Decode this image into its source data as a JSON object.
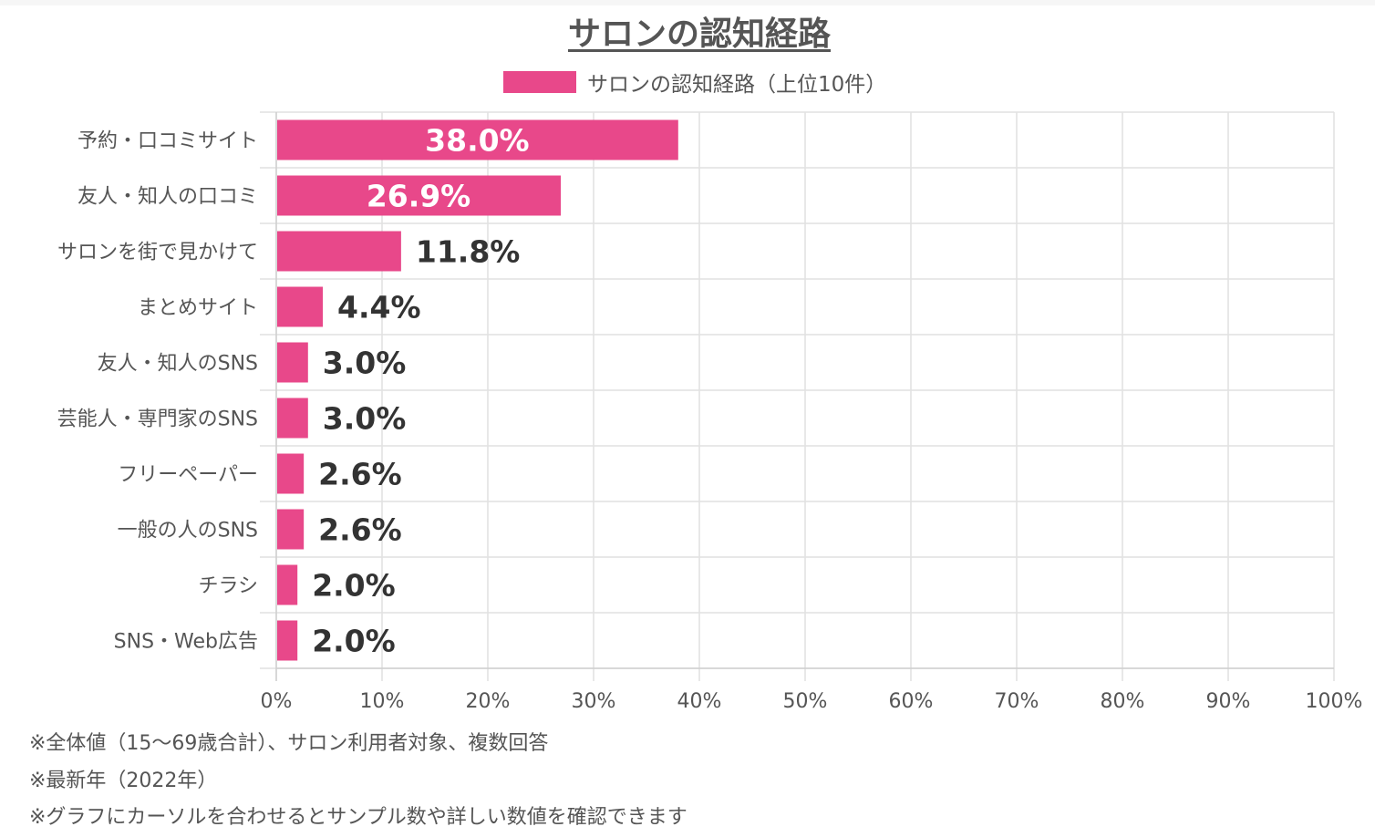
{
  "title": "サロンの認知経路",
  "legend": {
    "label": "サロンの認知経路（上位10件）",
    "color": "#e8488a"
  },
  "chart_data": {
    "type": "bar",
    "orientation": "horizontal",
    "title": "サロンの認知経路",
    "categories": [
      "予約・口コミサイト",
      "友人・知人の口コミ",
      "サロンを街で見かけて",
      "まとめサイト",
      "友人・知人のSNS",
      "芸能人・専門家のSNS",
      "フリーペーパー",
      "一般の人のSNS",
      "チラシ",
      "SNS・Web広告"
    ],
    "series": [
      {
        "name": "サロンの認知経路（上位10件）",
        "values": [
          38.0,
          26.9,
          11.8,
          4.4,
          3.0,
          3.0,
          2.6,
          2.6,
          2.0,
          2.0
        ],
        "color": "#e8488a"
      }
    ],
    "value_labels": [
      "38.0%",
      "26.9%",
      "11.8%",
      "4.4%",
      "3.0%",
      "3.0%",
      "2.6%",
      "2.6%",
      "2.0%",
      "2.0%"
    ],
    "xlim": [
      0,
      100
    ],
    "x_ticks": [
      "0%",
      "10%",
      "20%",
      "30%",
      "40%",
      "50%",
      "60%",
      "70%",
      "80%",
      "90%",
      "100%"
    ],
    "grid": true,
    "legend_position": "top-center"
  },
  "notes": [
    "※全体値（15〜69歳合計）、サロン利用者対象、複数回答",
    "※最新年（2022年）",
    "※グラフにカーソルを合わせるとサンプル数や詳しい数値を確認できます"
  ]
}
